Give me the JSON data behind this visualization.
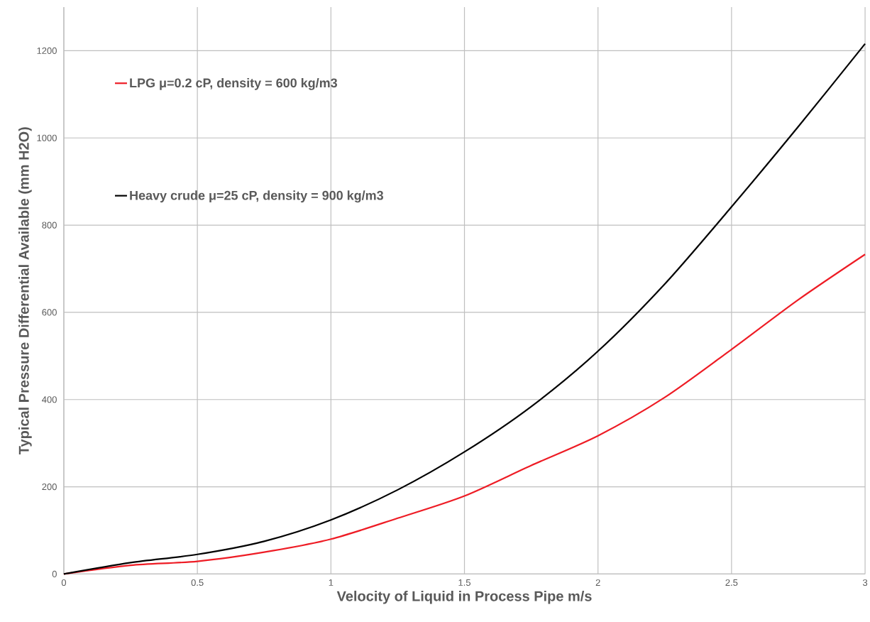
{
  "chart_data": {
    "type": "line",
    "xlabel": "Velocity of Liquid in Process Pipe m/s",
    "ylabel": "Typical Pressure Differential Available  (mm H2O)",
    "x": [
      0,
      0.25,
      0.5,
      0.75,
      1.0,
      1.25,
      1.5,
      1.75,
      2.0,
      2.25,
      2.5,
      2.75,
      3.0
    ],
    "series": [
      {
        "name": "LPG μ=0.2 cP, density = 600 kg/m3",
        "color": "#ee1c25",
        "values": [
          0,
          20,
          29,
          50,
          80,
          128,
          179,
          249,
          317,
          405,
          515,
          629,
          733
        ]
      },
      {
        "name": "Heavy crude μ=25 cP, density = 900 kg/m3",
        "color": "#000000",
        "values": [
          0,
          26,
          45,
          75,
          124,
          193,
          280,
          384,
          511,
          665,
          842,
          1026,
          1216
        ]
      }
    ],
    "xlim": [
      0,
      3
    ],
    "ylim": [
      0,
      1300
    ],
    "xticks": [
      0,
      0.5,
      1,
      1.5,
      2,
      2.5,
      3
    ],
    "yticks": [
      0,
      200,
      400,
      600,
      800,
      1000,
      1200
    ],
    "grid": true,
    "legend": "top left",
    "marker": "none",
    "line_style": "solid"
  }
}
